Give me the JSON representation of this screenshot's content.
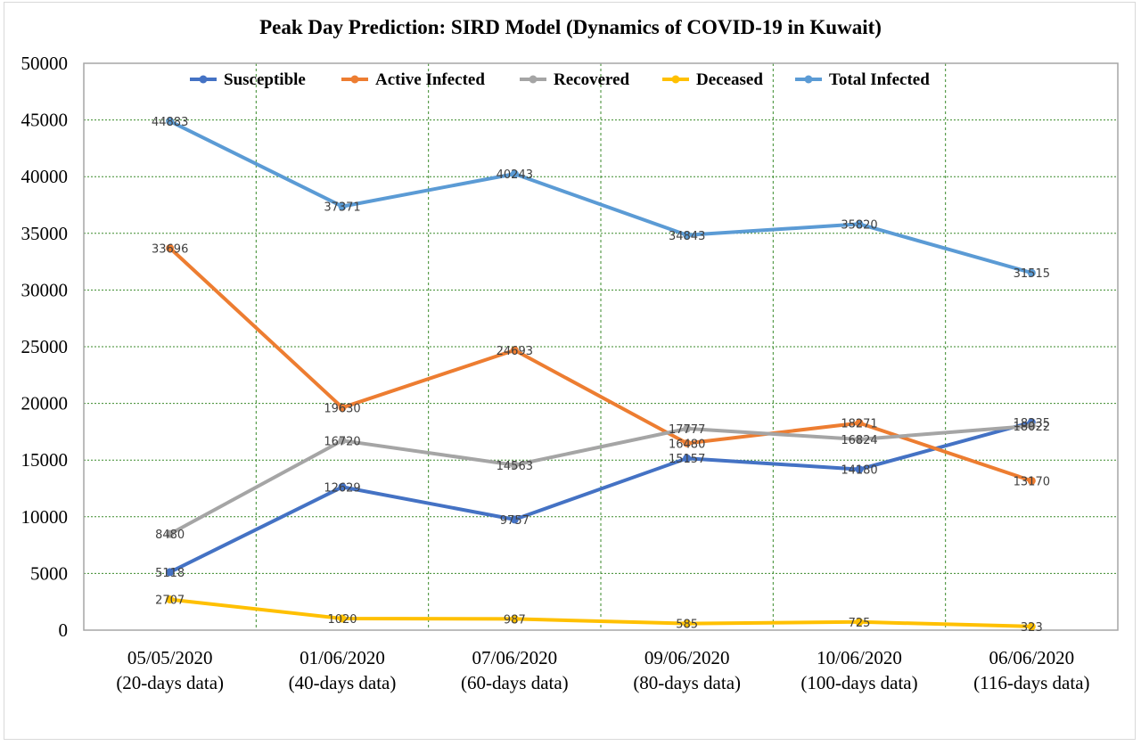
{
  "chart_data": {
    "type": "line",
    "title": "Peak Day Prediction: SIRD Model (Dynamics of COVID-19 in Kuwait)",
    "xlabel": "",
    "ylabel": "",
    "ylim": [
      0,
      50000
    ],
    "yticks": [
      0,
      5000,
      10000,
      15000,
      20000,
      25000,
      30000,
      35000,
      40000,
      45000,
      50000
    ],
    "categories": [
      [
        "05/05/2020",
        "(20-days data)"
      ],
      [
        "01/06/2020",
        "(40-days data)"
      ],
      [
        "07/06/2020",
        "(60-days data)"
      ],
      [
        "09/06/2020",
        "(80-days data)"
      ],
      [
        "10/06/2020",
        "(100-days data)"
      ],
      [
        "06/06/2020",
        "(116-days data)"
      ]
    ],
    "grid": true,
    "legend_position": "top",
    "series": [
      {
        "name": "Susceptible",
        "color": "#4472c4",
        "values": [
          5118,
          12629,
          9757,
          15157,
          14180,
          18335
        ]
      },
      {
        "name": "Active Infected",
        "color": "#ed7d31",
        "values": [
          33696,
          19630,
          24693,
          16480,
          18271,
          13170
        ]
      },
      {
        "name": "Recovered",
        "color": "#a5a5a5",
        "values": [
          8480,
          16720,
          14563,
          17777,
          16824,
          18022
        ]
      },
      {
        "name": "Deceased",
        "color": "#ffc000",
        "values": [
          2707,
          1020,
          987,
          585,
          725,
          323
        ]
      },
      {
        "name": "Total Infected",
        "color": "#5b9bd5",
        "values": [
          44883,
          37371,
          40243,
          34843,
          35820,
          31515
        ]
      }
    ]
  }
}
